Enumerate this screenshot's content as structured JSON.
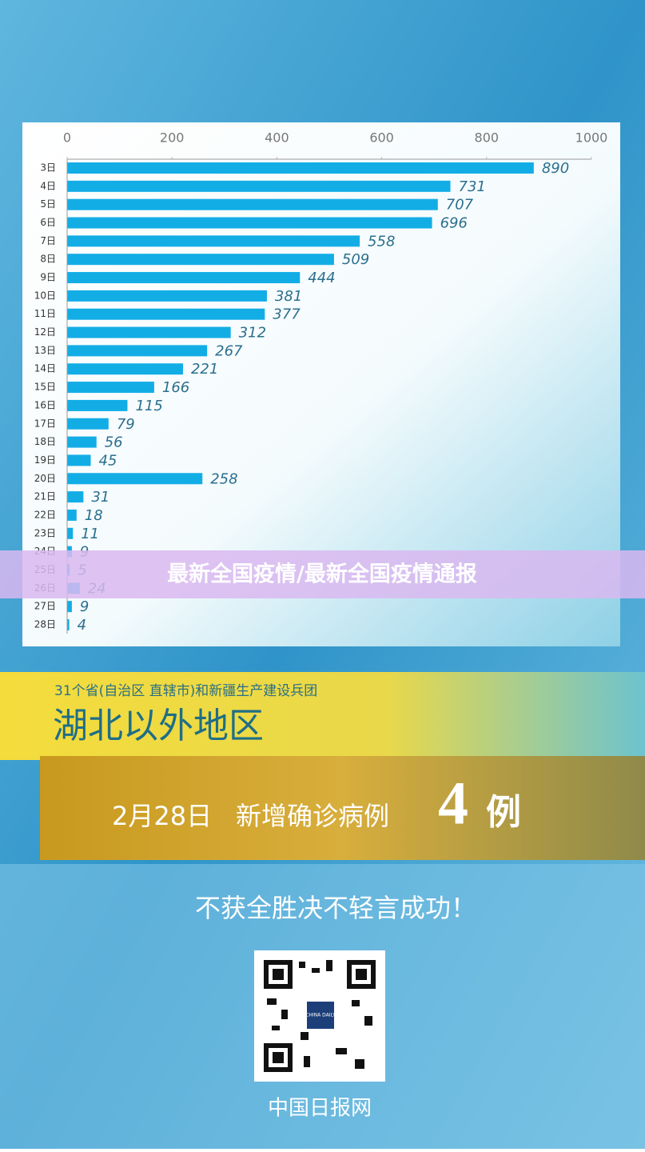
{
  "chart_data": {
    "type": "bar",
    "orientation": "horizontal",
    "categories": [
      "3日",
      "4日",
      "5日",
      "6日",
      "7日",
      "8日",
      "9日",
      "10日",
      "11日",
      "12日",
      "13日",
      "14日",
      "15日",
      "16日",
      "17日",
      "18日",
      "19日",
      "20日",
      "21日",
      "22日",
      "23日",
      "24日",
      "25日",
      "26日",
      "27日",
      "28日"
    ],
    "values": [
      890,
      731,
      707,
      696,
      558,
      509,
      444,
      381,
      377,
      312,
      267,
      221,
      166,
      115,
      79,
      56,
      45,
      258,
      31,
      18,
      11,
      9,
      5,
      24,
      9,
      4
    ],
    "color": "#13ade6",
    "xlim": [
      0,
      1000
    ],
    "xticks": [
      0,
      200,
      400,
      600,
      800,
      1000
    ]
  },
  "banner": {
    "title": "最新全国疫情/最新全国疫情通报"
  },
  "poster": {
    "subtitle": "31个省(自治区 直辖市)和新疆生产建设兵团",
    "region": "湖北以外地区",
    "headline": {
      "date": "2月28日",
      "label": "新增确诊病例",
      "count": 4,
      "unit": "例"
    },
    "slogan": "不获全胜决不轻言成功！",
    "qr_label": "CHINA DAILY",
    "source": "中国日报网"
  }
}
